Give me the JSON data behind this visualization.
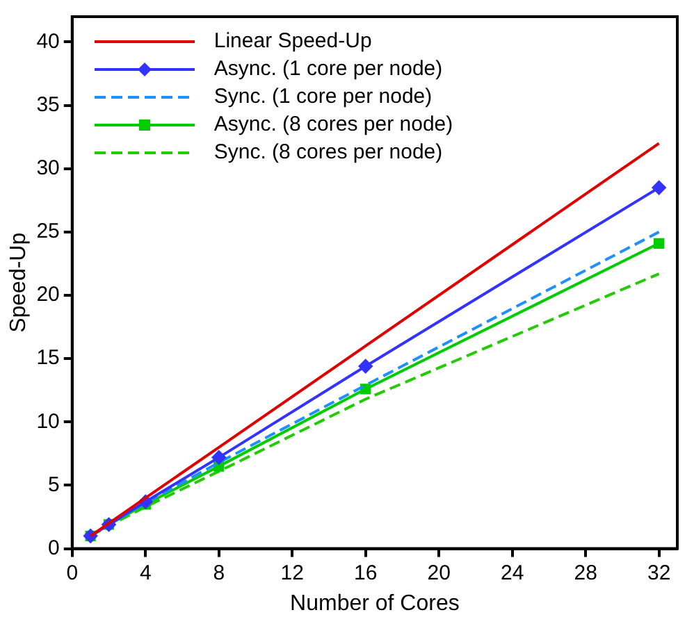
{
  "chart_data": {
    "type": "line",
    "xlabel": "Number of Cores",
    "ylabel": "Speed-Up",
    "xlim": [
      0,
      33
    ],
    "xticks": [
      0,
      4,
      8,
      12,
      16,
      20,
      24,
      28,
      32
    ],
    "ylim": [
      0,
      42
    ],
    "yticks": [
      0,
      5,
      10,
      15,
      20,
      25,
      30,
      35,
      40
    ],
    "grid": false,
    "legend": "top left",
    "x": [
      1,
      2,
      4,
      8,
      16,
      32
    ],
    "series": [
      {
        "name": "Linear Speed-Up",
        "color": "#e00000",
        "values": [
          1,
          2,
          4,
          8,
          16,
          32
        ],
        "marker": "none",
        "line_style": "solid"
      },
      {
        "name": "Async. (1 core per node)",
        "color": "#3333ff",
        "values": [
          1,
          1.9,
          3.7,
          7.2,
          14.4,
          28.5
        ],
        "marker": "diamond",
        "line_style": "solid"
      },
      {
        "name": "Sync. (1 core per node)",
        "color": "#1e90ff",
        "values": [
          1,
          1.9,
          3.6,
          6.8,
          12.9,
          25
        ],
        "marker": "none",
        "line_style": "dashed"
      },
      {
        "name": "Async. (8 cores per node)",
        "color": "#00cc00",
        "values": [
          1,
          1.9,
          3.5,
          6.5,
          12.6,
          24.1
        ],
        "marker": "square",
        "line_style": "solid"
      },
      {
        "name": "Sync. (8 cores per node)",
        "color": "#22cc00",
        "values": [
          1,
          1.8,
          3.3,
          6.1,
          11.8,
          21.7
        ],
        "marker": "none",
        "line_style": "dashed"
      }
    ]
  }
}
